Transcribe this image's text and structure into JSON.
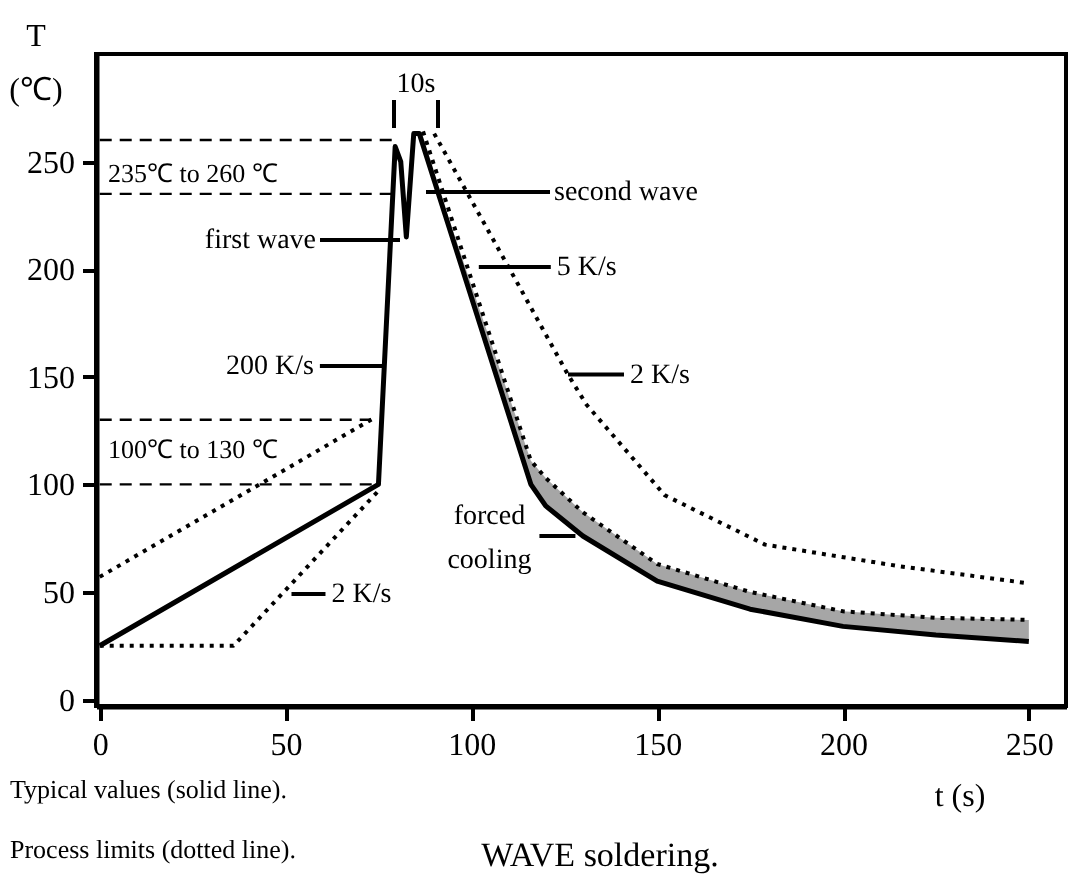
{
  "chart_data": {
    "type": "line",
    "title": "WAVE soldering.",
    "xlabel": "t (s)",
    "ylabel": "T (℃)",
    "xlim": [
      -1,
      260
    ],
    "xticks": [
      0,
      50,
      100,
      150,
      200,
      250
    ],
    "ylim": [
      -3,
      300
    ],
    "yticks": [
      0,
      50,
      100,
      150,
      200,
      250
    ],
    "grid": false,
    "marker": "none",
    "series": [
      {
        "color": "#000000",
        "line_style": "solid",
        "x": [
          0,
          75,
          79.5,
          81,
          82.5,
          84.5,
          86,
          116,
          120,
          130,
          150,
          175,
          200,
          225,
          250
        ],
        "values": [
          25,
          100,
          257,
          250,
          215,
          263,
          263,
          100,
          90,
          76,
          55,
          42,
          34,
          30,
          27
        ],
        "lower": [
          null,
          null,
          null,
          null,
          null,
          null,
          263,
          100,
          90,
          76,
          55,
          42,
          34,
          30,
          27
        ],
        "upper": [
          null,
          null,
          null,
          null,
          null,
          null,
          264,
          111,
          103,
          87,
          63,
          50,
          41,
          38,
          37
        ]
      },
      {
        "color": "#000000",
        "line_style": "dotted",
        "x": [
          0,
          36,
          75,
          80,
          87,
          116,
          120,
          130,
          150,
          175,
          200,
          225,
          250
        ],
        "values": [
          25,
          25,
          97,
          null,
          264,
          111,
          103,
          87,
          63,
          50,
          41,
          38,
          37
        ]
      },
      {
        "color": "#000000",
        "line_style": "dotted",
        "x": [
          0,
          74,
          80,
          90,
          100,
          110,
          126,
          131,
          152,
          179,
          215,
          250
        ],
        "values": [
          57,
          131,
          null,
          263,
          232,
          201,
          151,
          137,
          95,
          72,
          62,
          54
        ]
      },
      {
        "color": "#000000",
        "line_style": "dashed",
        "x": [
          0,
          79
        ],
        "values": [
          260,
          260
        ]
      },
      {
        "color": "#000000",
        "line_style": "dashed",
        "x": [
          0,
          80.5
        ],
        "values": [
          235,
          235
        ]
      },
      {
        "color": "#000000",
        "line_style": "dashed",
        "x": [
          0,
          73
        ],
        "values": [
          130,
          130
        ]
      },
      {
        "color": "#000000",
        "line_style": "dashed",
        "x": [
          0,
          75
        ],
        "values": [
          100,
          100
        ]
      }
    ],
    "annotations": [
      "10s",
      "235℃ to 260 ℃",
      "100℃  to 130 ℃",
      "first wave",
      {
        "text": "200 K/s",
        "x": 77,
        "y": 155
      },
      "second wave",
      {
        "text": "5 K/s",
        "x": 102,
        "y": 201
      },
      {
        "text": "2 K/s",
        "x": 126,
        "y": 151
      },
      {
        "text": "forced cooling",
        "x": 128,
        "y": 76
      },
      {
        "text": "2 K/s",
        "x": 51.6,
        "y": 49
      },
      "Typical values (solid line).",
      "Process limits (dotted line)."
    ]
  }
}
